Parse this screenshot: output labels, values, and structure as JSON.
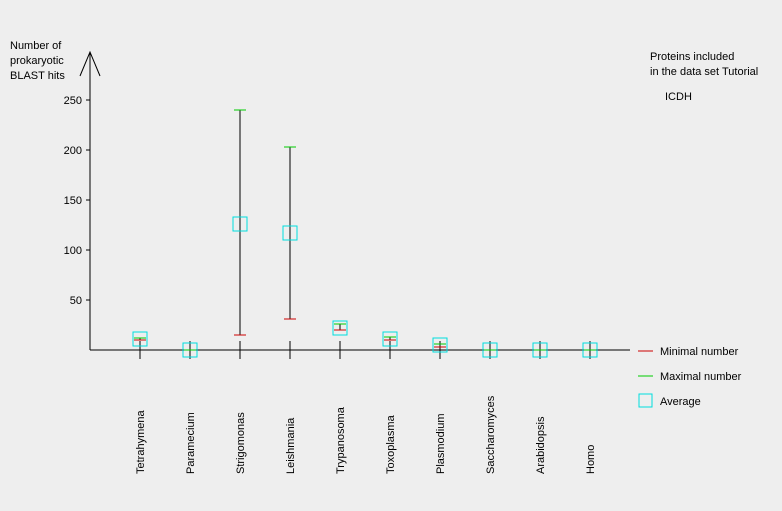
{
  "chart_data": {
    "type": "error-bar",
    "ylabel_lines": [
      "Number of",
      "prokaryotic",
      "BLAST hits"
    ],
    "ylim": [
      0,
      250
    ],
    "yticks": [
      50,
      100,
      150,
      200,
      250
    ],
    "categories": [
      "Tetrahymena",
      "Paramecium",
      "Strigomonas",
      "Leishmania",
      "Trypanosoma",
      "Toxoplasma",
      "Plasmodium",
      "Saccharomyces",
      "Arabidopsis",
      "Homo"
    ],
    "min": [
      10,
      0,
      15,
      31,
      20,
      10,
      3,
      0,
      0,
      0
    ],
    "max": [
      12,
      0,
      240,
      203,
      26,
      13,
      6,
      0,
      0,
      0
    ],
    "average": [
      11,
      0,
      126,
      117,
      22,
      11,
      5,
      0,
      0,
      0
    ],
    "legend": {
      "min_label": "Minimal number",
      "max_label": "Maximal number",
      "avg_label": "Average"
    },
    "colors": {
      "min": "#cc0000",
      "max": "#00cc00",
      "avg": "#00dddd",
      "axis": "#000000"
    }
  },
  "annotation": {
    "line1": "Proteins included",
    "line2": "in the data set Tutorial",
    "protein": "ICDH"
  }
}
